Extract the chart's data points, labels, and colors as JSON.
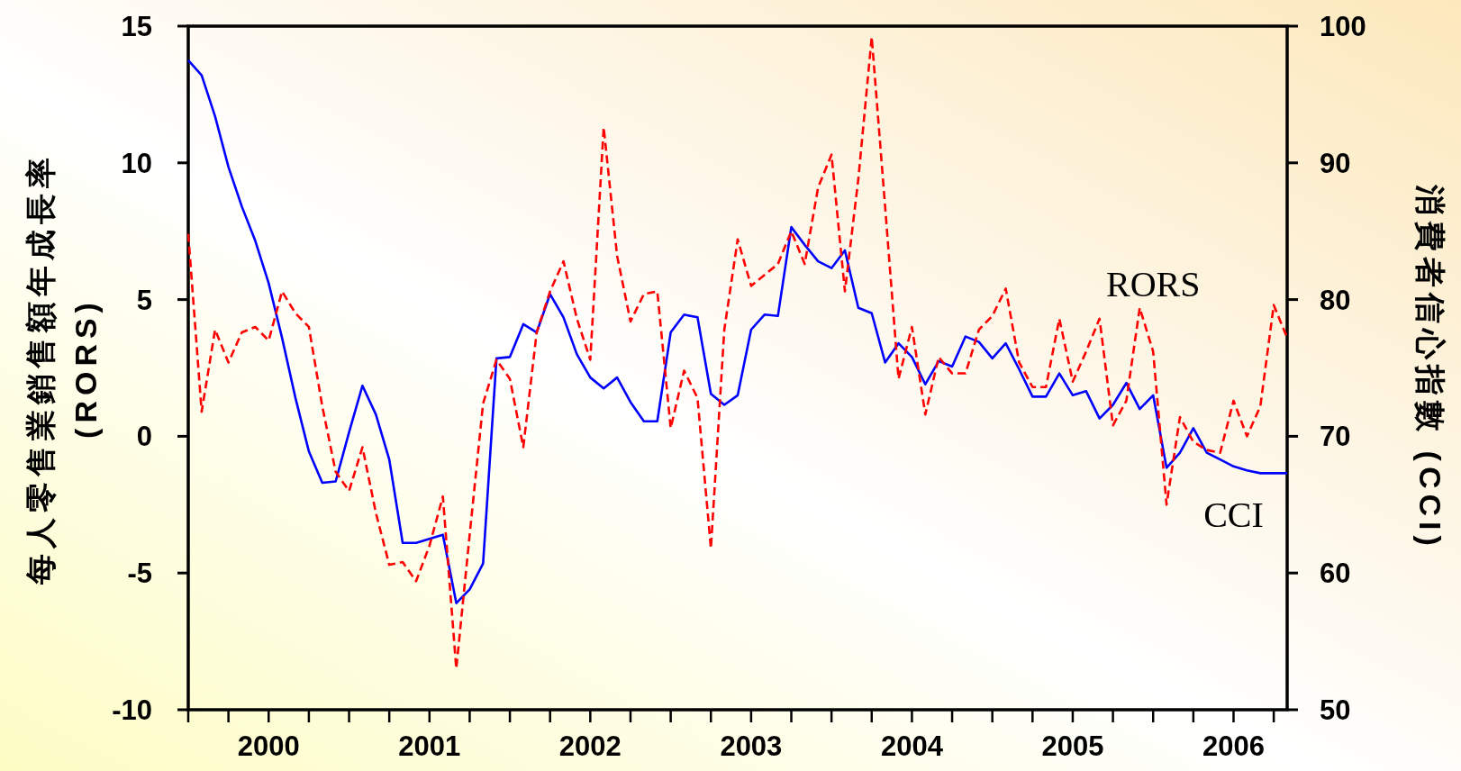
{
  "chart_data": {
    "type": "line",
    "ylabel": "每人零售業銷售額年成長率 (RORS)",
    "y2label": "消費者信心指數 (CCI)",
    "x": [
      "2000-01",
      "2000-02",
      "2000-03",
      "2000-04",
      "2000-05",
      "2000-06",
      "2000-07",
      "2000-08",
      "2000-09",
      "2000-10",
      "2000-11",
      "2000-12",
      "2001-01",
      "2001-02",
      "2001-03",
      "2001-04",
      "2001-05",
      "2001-06",
      "2001-07",
      "2001-08",
      "2001-09",
      "2001-10",
      "2001-11",
      "2001-12",
      "2002-01",
      "2002-02",
      "2002-03",
      "2002-04",
      "2002-05",
      "2002-06",
      "2002-07",
      "2002-08",
      "2002-09",
      "2002-10",
      "2002-11",
      "2002-12",
      "2003-01",
      "2003-02",
      "2003-03",
      "2003-04",
      "2003-05",
      "2003-06",
      "2003-07",
      "2003-08",
      "2003-09",
      "2003-10",
      "2003-11",
      "2003-12",
      "2004-01",
      "2004-02",
      "2004-03",
      "2004-04",
      "2004-05",
      "2004-06",
      "2004-07",
      "2004-08",
      "2004-09",
      "2004-10",
      "2004-11",
      "2004-12",
      "2005-01",
      "2005-02",
      "2005-03",
      "2005-04",
      "2005-05",
      "2005-06",
      "2005-07",
      "2005-08",
      "2005-09",
      "2005-10",
      "2005-11",
      "2005-12",
      "2006-01",
      "2006-02",
      "2006-03",
      "2006-04",
      "2006-05",
      "2006-06",
      "2006-07",
      "2006-08",
      "2006-09",
      "2006-10",
      "2006-11"
    ],
    "series": [
      {
        "name": "RORS",
        "color": "#ff0000",
        "line_style": "dashed",
        "values": [
          7.4,
          0.9,
          3.9,
          2.7,
          3.8,
          4.0,
          3.5,
          5.3,
          4.5,
          4.0,
          1.1,
          -1.3,
          -2.0,
          -0.4,
          -2.8,
          -4.7,
          -4.6,
          -5.3,
          -4.0,
          -2.2,
          -8.5,
          -3.6,
          1.2,
          2.8,
          2.1,
          -0.4,
          3.8,
          5.3,
          6.4,
          4.3,
          2.8,
          11.3,
          6.6,
          4.2,
          5.2,
          5.3,
          0.3,
          2.4,
          1.4,
          -4.1,
          3.9,
          7.2,
          5.5,
          5.9,
          6.3,
          7.5,
          6.3,
          9.1,
          10.3,
          5.3,
          9.4,
          14.6,
          8.4,
          2.1,
          4.0,
          0.8,
          2.9,
          2.3,
          2.3,
          3.9,
          4.4,
          5.4,
          2.7,
          1.8,
          1.8,
          4.3,
          2.0,
          3.1,
          4.3,
          0.4,
          1.3,
          4.7,
          3.1,
          -2.5,
          0.7,
          -0.2,
          -0.5,
          -0.6,
          1.3,
          0.0,
          1.1,
          4.8,
          3.6
        ]
      },
      {
        "name": "CCI",
        "color": "#0000ff",
        "line_style": "solid",
        "axis": "y2",
        "values": [
          97.5,
          96.4,
          93.4,
          89.7,
          86.8,
          84.3,
          81.2,
          77.2,
          72.8,
          68.9,
          66.6,
          66.7,
          70.3,
          73.7,
          71.6,
          68.3,
          62.2,
          62.2,
          62.5,
          62.8,
          57.8,
          58.8,
          60.7,
          75.7,
          75.8,
          78.2,
          77.6,
          80.4,
          78.7,
          76.0,
          74.3,
          73.5,
          74.3,
          72.5,
          71.1,
          71.1,
          77.6,
          78.9,
          78.7,
          73.1,
          72.3,
          73.0,
          77.8,
          78.9,
          78.8,
          85.3,
          84.0,
          82.8,
          82.3,
          83.6,
          79.4,
          79.0,
          75.4,
          76.8,
          75.8,
          73.8,
          75.5,
          75.1,
          77.3,
          76.9,
          75.7,
          76.8,
          74.9,
          72.9,
          72.9,
          74.6,
          73.0,
          73.3,
          71.3,
          72.3,
          73.9,
          72.0,
          73.0,
          67.7,
          68.8,
          70.6,
          68.8,
          68.3,
          67.8,
          67.5,
          67.3,
          67.3,
          67.3
        ]
      }
    ],
    "xlim": [
      "2000-01",
      "2006-11"
    ],
    "xticks": [
      {
        "value": "2000-01",
        "label": null
      },
      {
        "value": "2000-04",
        "label": null
      },
      {
        "value": "2000-07",
        "label": "2000"
      },
      {
        "value": "2000-10",
        "label": null
      },
      {
        "value": "2001-01",
        "label": null
      },
      {
        "value": "2001-04",
        "label": null
      },
      {
        "value": "2001-07",
        "label": "2001"
      },
      {
        "value": "2001-10",
        "label": null
      },
      {
        "value": "2002-01",
        "label": null
      },
      {
        "value": "2002-04",
        "label": null
      },
      {
        "value": "2002-07",
        "label": "2002"
      },
      {
        "value": "2002-10",
        "label": null
      },
      {
        "value": "2003-01",
        "label": null
      },
      {
        "value": "2003-04",
        "label": null
      },
      {
        "value": "2003-07",
        "label": "2003"
      },
      {
        "value": "2003-10",
        "label": null
      },
      {
        "value": "2004-01",
        "label": null
      },
      {
        "value": "2004-04",
        "label": null
      },
      {
        "value": "2004-07",
        "label": "2004"
      },
      {
        "value": "2004-10",
        "label": null
      },
      {
        "value": "2005-01",
        "label": null
      },
      {
        "value": "2005-04",
        "label": null
      },
      {
        "value": "2005-07",
        "label": "2005"
      },
      {
        "value": "2005-10",
        "label": null
      },
      {
        "value": "2006-01",
        "label": null
      },
      {
        "value": "2006-04",
        "label": null
      },
      {
        "value": "2006-07",
        "label": "2006"
      },
      {
        "value": "2006-10",
        "label": null
      }
    ],
    "ylim": [
      -10,
      15
    ],
    "yticks": [
      -10,
      -5,
      0,
      5,
      10,
      15
    ],
    "y2lim": [
      50,
      100
    ],
    "y2ticks": [
      50,
      60,
      70,
      80,
      90,
      100
    ],
    "grid": false,
    "legend": false
  }
}
